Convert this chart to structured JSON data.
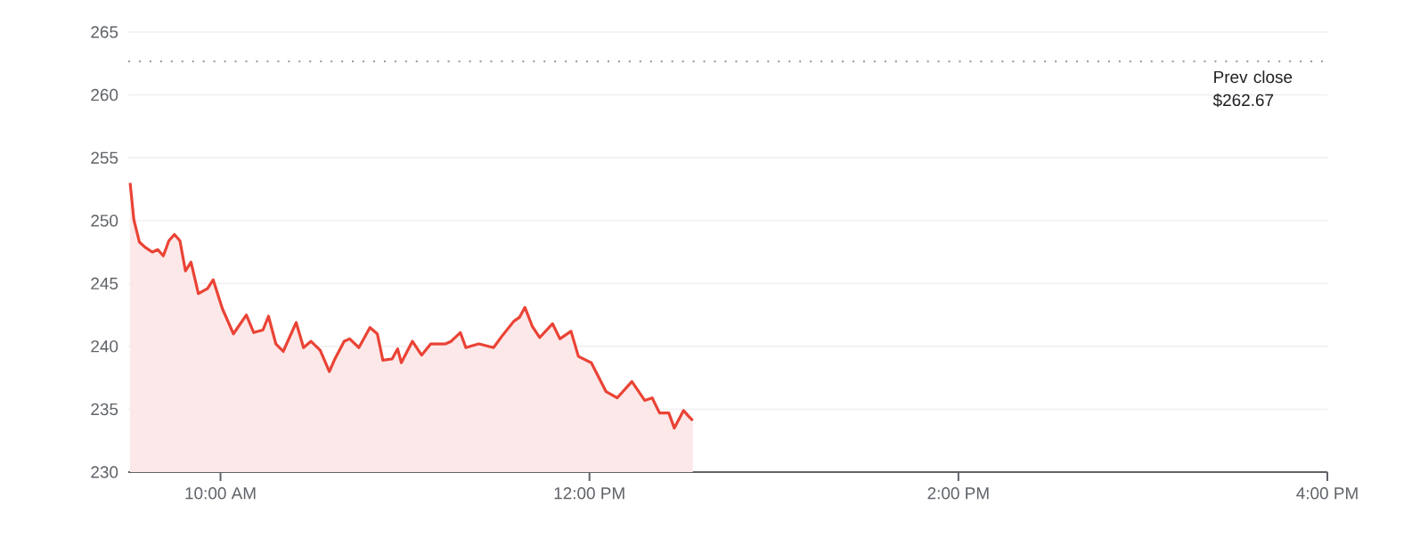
{
  "chart_data": {
    "type": "area",
    "xlim": [
      9.5,
      16
    ],
    "ylim": [
      230,
      265
    ],
    "xticks": [
      {
        "value": 10,
        "label": "10:00 AM"
      },
      {
        "value": 12,
        "label": "12:00 PM"
      },
      {
        "value": 14,
        "label": "2:00 PM"
      },
      {
        "value": 16,
        "label": "4:00 PM"
      }
    ],
    "yticks": [
      230,
      235,
      240,
      245,
      250,
      255,
      260,
      265
    ],
    "grid": "y",
    "series": [
      {
        "color": "#ea4335",
        "x": [
          9.51,
          9.53,
          9.56,
          9.59,
          9.63,
          9.66,
          9.69,
          9.72,
          9.75,
          9.78,
          9.81,
          9.84,
          9.88,
          9.93,
          9.96,
          10.01,
          10.07,
          10.14,
          10.18,
          10.23,
          10.26,
          10.3,
          10.34,
          10.41,
          10.45,
          10.49,
          10.54,
          10.59,
          10.62,
          10.67,
          10.7,
          10.75,
          10.81,
          10.85,
          10.88,
          10.93,
          10.96,
          10.98,
          11.04,
          11.09,
          11.14,
          11.22,
          11.25,
          11.3,
          11.33,
          11.4,
          11.48,
          11.53,
          11.59,
          11.62,
          11.65,
          11.69,
          11.73,
          11.8,
          11.84,
          11.9,
          11.94,
          12.01,
          12.09,
          12.15,
          12.23,
          12.3,
          12.34,
          12.38,
          12.43,
          12.46,
          12.51,
          12.54,
          12.56
        ],
        "values": [
          253.0,
          250.1,
          248.3,
          247.9,
          247.5,
          247.7,
          247.2,
          248.4,
          248.9,
          248.4,
          246.0,
          246.7,
          244.2,
          244.6,
          245.3,
          243.0,
          241.0,
          242.5,
          241.1,
          241.3,
          242.4,
          240.2,
          239.6,
          241.9,
          239.9,
          240.4,
          239.7,
          238.0,
          239.0,
          240.4,
          240.6,
          239.9,
          241.5,
          241.0,
          238.9,
          239.0,
          239.8,
          238.7,
          240.4,
          239.3,
          240.2,
          240.2,
          240.4,
          241.1,
          239.9,
          240.2,
          239.9,
          240.9,
          242.0,
          242.3,
          243.1,
          241.6,
          240.7,
          241.8,
          240.6,
          241.2,
          239.2,
          238.7,
          236.4,
          235.9,
          237.2,
          235.7,
          235.9,
          234.7,
          234.7,
          233.5,
          234.9,
          234.4,
          234.1
        ]
      }
    ],
    "ref_lines": [
      {
        "axis": "y",
        "value": 262.67,
        "label": "Prev close $262.67",
        "color": "#9aa0a6",
        "line_style": "dotted"
      }
    ]
  }
}
